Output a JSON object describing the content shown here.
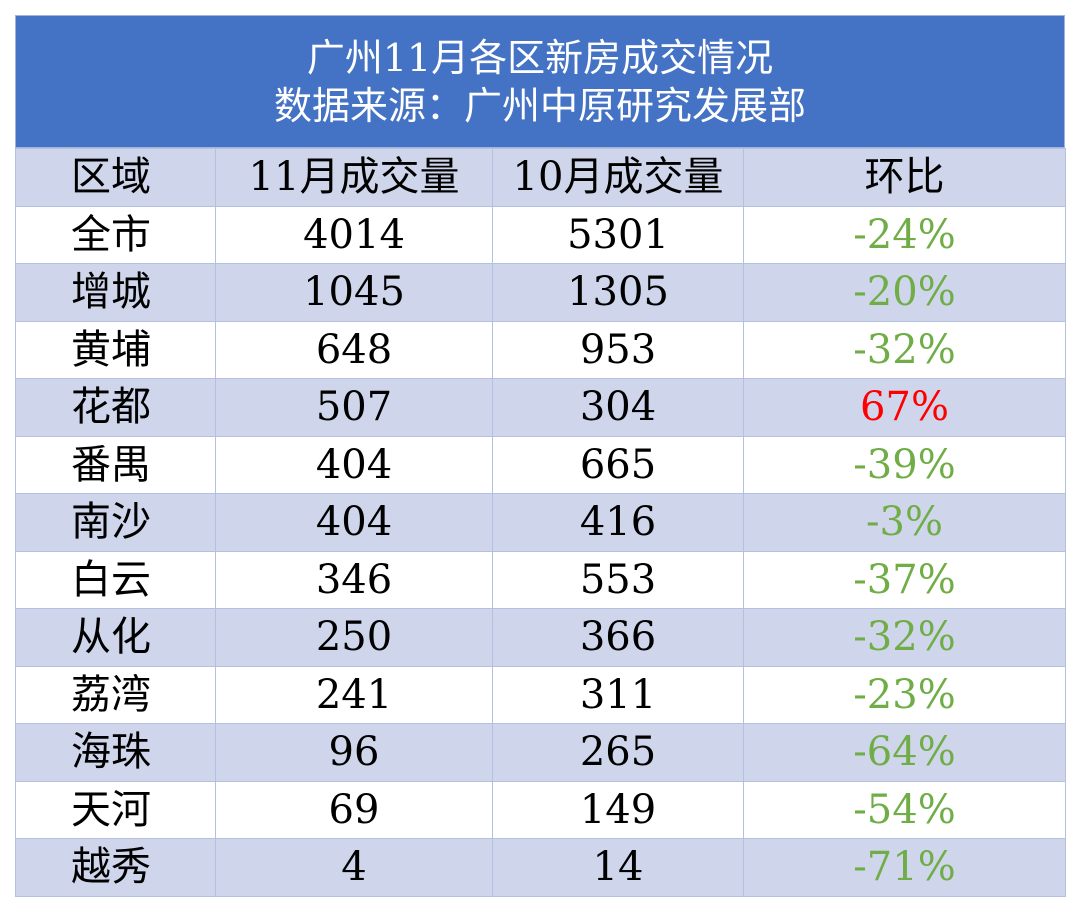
{
  "header": {
    "title": "广州11月各区新房成交情况",
    "subtitle": "数据来源：广州中原研究发展部"
  },
  "table": {
    "columns": [
      "区域",
      "11月成交量",
      "10月成交量",
      "环比"
    ],
    "rows": [
      [
        "全市",
        "4014",
        "5301",
        "-24%"
      ],
      [
        "增城",
        "1045",
        "1305",
        "-20%"
      ],
      [
        "黄埔",
        "648",
        "953",
        "-32%"
      ],
      [
        "花都",
        "507",
        "304",
        "67%"
      ],
      [
        "番禺",
        "404",
        "665",
        "-39%"
      ],
      [
        "南沙",
        "404",
        "416",
        "-3%"
      ],
      [
        "白云",
        "346",
        "553",
        "-37%"
      ],
      [
        "从化",
        "250",
        "366",
        "-32%"
      ],
      [
        "荔湾",
        "241",
        "311",
        "-23%"
      ],
      [
        "海珠",
        "96",
        "265",
        "-64%"
      ],
      [
        "天河",
        "69",
        "149",
        "-54%"
      ],
      [
        "越秀",
        "4",
        "14",
        "-71%"
      ]
    ],
    "change_colors": {
      "negative": "#70ad47",
      "positive": "#ff0000"
    }
  }
}
